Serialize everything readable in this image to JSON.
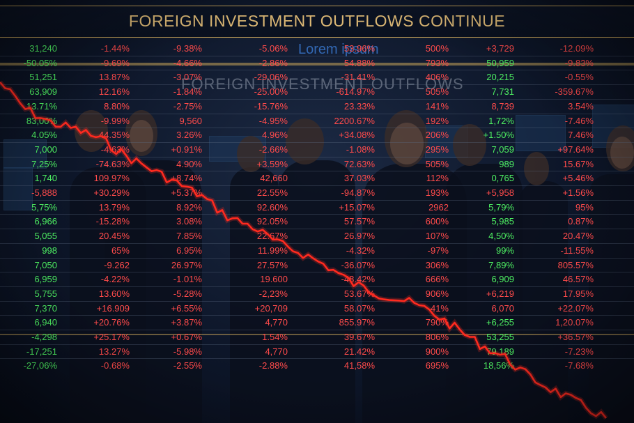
{
  "headline": "FOREIGN INVESTMENT OUTFLOWS CONTINUE",
  "background_sign_text": "FOREIGN INVESTMENT OUTFLOWS",
  "background_top_text": "Lorem ipsum",
  "colors": {
    "gain": "#4ef062",
    "loss": "#ff4b4b",
    "headline": "#e6c07a",
    "trend_line": "#ff2a1f"
  },
  "ticker_rows": [
    [
      {
        "v": "31,240",
        "d": "up"
      },
      {
        "v": "-1.44%",
        "d": "down"
      },
      {
        "v": "-9.38%",
        "d": "down"
      },
      {
        "v": "-5.06%",
        "d": "down"
      },
      {
        "v": "53.96%",
        "d": "down"
      },
      {
        "v": "500%",
        "d": "down"
      },
      {
        "v": "+3,729",
        "d": "down"
      },
      {
        "v": "-12.09%",
        "d": "down"
      }
    ],
    [
      {
        "v": "-50.05%",
        "d": "up"
      },
      {
        "v": "-9.69%",
        "d": "down"
      },
      {
        "v": "-4.66%",
        "d": "down"
      },
      {
        "v": "-2.86%",
        "d": "down"
      },
      {
        "v": "54.88%",
        "d": "down"
      },
      {
        "v": "793%",
        "d": "down"
      },
      {
        "v": "50,959",
        "d": "up"
      },
      {
        "v": "-9.83%",
        "d": "down"
      }
    ],
    [
      {
        "v": "51,251",
        "d": "up"
      },
      {
        "v": "13.87%",
        "d": "down"
      },
      {
        "v": "-3.07%",
        "d": "down"
      },
      {
        "v": "-29.06%",
        "d": "down"
      },
      {
        "v": "-31.41%",
        "d": "down"
      },
      {
        "v": "406%",
        "d": "down"
      },
      {
        "v": "20,215",
        "d": "up"
      },
      {
        "v": "-0.55%",
        "d": "down"
      }
    ],
    [
      {
        "v": "63,909",
        "d": "up"
      },
      {
        "v": "12.16%",
        "d": "down"
      },
      {
        "v": "-1.84%",
        "d": "down"
      },
      {
        "v": "-25.00%",
        "d": "down"
      },
      {
        "v": "-614.97%",
        "d": "down"
      },
      {
        "v": "505%",
        "d": "down"
      },
      {
        "v": "7,731",
        "d": "up"
      },
      {
        "v": "-359.67%",
        "d": "down"
      }
    ],
    [
      {
        "v": "13.71%",
        "d": "up"
      },
      {
        "v": "8.80%",
        "d": "down"
      },
      {
        "v": "-2.75%",
        "d": "down"
      },
      {
        "v": "-15.76%",
        "d": "down"
      },
      {
        "v": "23.33%",
        "d": "down"
      },
      {
        "v": "141%",
        "d": "down"
      },
      {
        "v": "8,739",
        "d": "down"
      },
      {
        "v": "3.54%",
        "d": "down"
      }
    ],
    [
      {
        "v": "83,00%",
        "d": "up"
      },
      {
        "v": "-9.99%",
        "d": "down"
      },
      {
        "v": "9,560",
        "d": "down"
      },
      {
        "v": "-4.95%",
        "d": "down"
      },
      {
        "v": "2200.67%",
        "d": "down"
      },
      {
        "v": "192%",
        "d": "down"
      },
      {
        "v": "1,72%",
        "d": "up"
      },
      {
        "v": "-7.46%",
        "d": "down"
      }
    ],
    [
      {
        "v": "4.05%",
        "d": "up"
      },
      {
        "v": "44.35%",
        "d": "down"
      },
      {
        "v": "3.26%",
        "d": "down"
      },
      {
        "v": "4.96%",
        "d": "down"
      },
      {
        "v": "+34.08%",
        "d": "down"
      },
      {
        "v": "206%",
        "d": "down"
      },
      {
        "v": "+1.50%",
        "d": "up"
      },
      {
        "v": "7.46%",
        "d": "down"
      }
    ],
    [
      {
        "v": "7,000",
        "d": "up"
      },
      {
        "v": "-4.63%",
        "d": "down"
      },
      {
        "v": "+0.91%",
        "d": "down"
      },
      {
        "v": "-2.66%",
        "d": "down"
      },
      {
        "v": "-1.08%",
        "d": "down"
      },
      {
        "v": "295%",
        "d": "down"
      },
      {
        "v": "7,059",
        "d": "up"
      },
      {
        "v": "+97.64%",
        "d": "down"
      }
    ],
    [
      {
        "v": "7,25%",
        "d": "up"
      },
      {
        "v": "-74.63%",
        "d": "down"
      },
      {
        "v": "4.90%",
        "d": "down"
      },
      {
        "v": "+3.59%",
        "d": "down"
      },
      {
        "v": "72.63%",
        "d": "down"
      },
      {
        "v": "505%",
        "d": "down"
      },
      {
        "v": "989",
        "d": "up"
      },
      {
        "v": "15.67%",
        "d": "down"
      }
    ],
    [
      {
        "v": "1,740",
        "d": "up"
      },
      {
        "v": "109.97%",
        "d": "down"
      },
      {
        "v": "+8.74%",
        "d": "down"
      },
      {
        "v": "42,660",
        "d": "down"
      },
      {
        "v": "37.03%",
        "d": "down"
      },
      {
        "v": "112%",
        "d": "down"
      },
      {
        "v": "0,765",
        "d": "up"
      },
      {
        "v": "+5.46%",
        "d": "down"
      }
    ],
    [
      {
        "v": "-5,888",
        "d": "down"
      },
      {
        "v": "+30.29%",
        "d": "down"
      },
      {
        "v": "+5.37%",
        "d": "down"
      },
      {
        "v": "22.55%",
        "d": "down"
      },
      {
        "v": "-94.87%",
        "d": "down"
      },
      {
        "v": "193%",
        "d": "down"
      },
      {
        "v": "+5,958",
        "d": "down"
      },
      {
        "v": "+1.56%",
        "d": "down"
      }
    ],
    [
      {
        "v": "5,75%",
        "d": "up"
      },
      {
        "v": "13.79%",
        "d": "down"
      },
      {
        "v": "8.92%",
        "d": "down"
      },
      {
        "v": "92.60%",
        "d": "down"
      },
      {
        "v": "+15.07%",
        "d": "down"
      },
      {
        "v": "2962",
        "d": "down"
      },
      {
        "v": "5,79%",
        "d": "up"
      },
      {
        "v": "95%",
        "d": "down"
      }
    ],
    [
      {
        "v": "6,966",
        "d": "up"
      },
      {
        "v": "-15.28%",
        "d": "down"
      },
      {
        "v": "3.08%",
        "d": "down"
      },
      {
        "v": "92.05%",
        "d": "down"
      },
      {
        "v": "57.57%",
        "d": "down"
      },
      {
        "v": "600%",
        "d": "down"
      },
      {
        "v": "5,985",
        "d": "up"
      },
      {
        "v": "0.87%",
        "d": "down"
      }
    ],
    [
      {
        "v": "5,055",
        "d": "up"
      },
      {
        "v": "20.45%",
        "d": "down"
      },
      {
        "v": "7.85%",
        "d": "down"
      },
      {
        "v": "22.67%",
        "d": "down"
      },
      {
        "v": "26.97%",
        "d": "down"
      },
      {
        "v": "107%",
        "d": "down"
      },
      {
        "v": "4,50%",
        "d": "up"
      },
      {
        "v": "20.47%",
        "d": "down"
      }
    ],
    [
      {
        "v": "998",
        "d": "up"
      },
      {
        "v": "65%",
        "d": "down"
      },
      {
        "v": "6.95%",
        "d": "down"
      },
      {
        "v": "11.99%",
        "d": "down"
      },
      {
        "v": "-4.32%",
        "d": "down"
      },
      {
        "v": "-97%",
        "d": "down"
      },
      {
        "v": "99%",
        "d": "up"
      },
      {
        "v": "-11.55%",
        "d": "down"
      }
    ],
    [
      {
        "v": "7,050",
        "d": "up"
      },
      {
        "v": "-9.262",
        "d": "down"
      },
      {
        "v": "26.97%",
        "d": "down"
      },
      {
        "v": "27.57%",
        "d": "down"
      },
      {
        "v": "-36.07%",
        "d": "down"
      },
      {
        "v": "306%",
        "d": "down"
      },
      {
        "v": "7,89%",
        "d": "up"
      },
      {
        "v": "805.57%",
        "d": "down"
      }
    ],
    [
      {
        "v": "6,959",
        "d": "up"
      },
      {
        "v": "-4.22%",
        "d": "down"
      },
      {
        "v": "-1.01%",
        "d": "down"
      },
      {
        "v": "19.600",
        "d": "down"
      },
      {
        "v": "-48.42%",
        "d": "down"
      },
      {
        "v": "666%",
        "d": "down"
      },
      {
        "v": "6,909",
        "d": "up"
      },
      {
        "v": "46.57%",
        "d": "down"
      }
    ],
    [
      {
        "v": "5,755",
        "d": "up"
      },
      {
        "v": "13.60%",
        "d": "down"
      },
      {
        "v": "-5.28%",
        "d": "down"
      },
      {
        "v": "-2,23%",
        "d": "down"
      },
      {
        "v": "53.67%",
        "d": "down"
      },
      {
        "v": "906%",
        "d": "down"
      },
      {
        "v": "+6,219",
        "d": "down"
      },
      {
        "v": "17.95%",
        "d": "down"
      }
    ],
    [
      {
        "v": "7,370",
        "d": "up"
      },
      {
        "v": "+16.909",
        "d": "down"
      },
      {
        "v": "+6.55%",
        "d": "down"
      },
      {
        "v": "+20,709",
        "d": "down"
      },
      {
        "v": "58.07%",
        "d": "down"
      },
      {
        "v": "-41%",
        "d": "down"
      },
      {
        "v": "6,070",
        "d": "down"
      },
      {
        "v": "+22.07%",
        "d": "down"
      }
    ],
    [
      {
        "v": "6,940",
        "d": "up"
      },
      {
        "v": "+20.76%",
        "d": "down"
      },
      {
        "v": "+3.87%",
        "d": "down"
      },
      {
        "v": "4,770",
        "d": "down"
      },
      {
        "v": "855.97%",
        "d": "down"
      },
      {
        "v": "790%",
        "d": "down"
      },
      {
        "v": "+6,255",
        "d": "up"
      },
      {
        "v": "1,20.07%",
        "d": "down"
      }
    ],
    [
      {
        "v": "-4,298",
        "d": "up"
      },
      {
        "v": "+25.17%",
        "d": "down"
      },
      {
        "v": "+0.67%",
        "d": "down"
      },
      {
        "v": "1.54%",
        "d": "down"
      },
      {
        "v": "39.67%",
        "d": "down"
      },
      {
        "v": "806%",
        "d": "down"
      },
      {
        "v": "53,255",
        "d": "up"
      },
      {
        "v": "+36.57%",
        "d": "down"
      }
    ],
    [
      {
        "v": "-17,251",
        "d": "up"
      },
      {
        "v": "13.27%",
        "d": "down"
      },
      {
        "v": "-5.98%",
        "d": "down"
      },
      {
        "v": "4,770",
        "d": "down"
      },
      {
        "v": "21.42%",
        "d": "down"
      },
      {
        "v": "900%",
        "d": "down"
      },
      {
        "v": "79,189",
        "d": "up"
      },
      {
        "v": "-7.23%",
        "d": "down"
      }
    ],
    [
      {
        "v": "-27,06%",
        "d": "up"
      },
      {
        "v": "-0.68%",
        "d": "down"
      },
      {
        "v": "-2.55%",
        "d": "down"
      },
      {
        "v": "-2.88%",
        "d": "down"
      },
      {
        "v": "41,58%",
        "d": "down"
      },
      {
        "v": "695%",
        "d": "down"
      },
      {
        "v": "18,56%",
        "d": "up"
      },
      {
        "v": "-7.68%",
        "d": "down"
      }
    ]
  ],
  "trend_line": {
    "direction": "declining",
    "values": [
      100,
      92,
      88,
      86,
      83,
      78,
      74,
      70,
      66,
      60,
      57,
      52,
      49,
      45,
      40,
      37,
      35,
      32,
      27,
      22,
      18,
      12,
      8,
      4,
      0
    ]
  }
}
